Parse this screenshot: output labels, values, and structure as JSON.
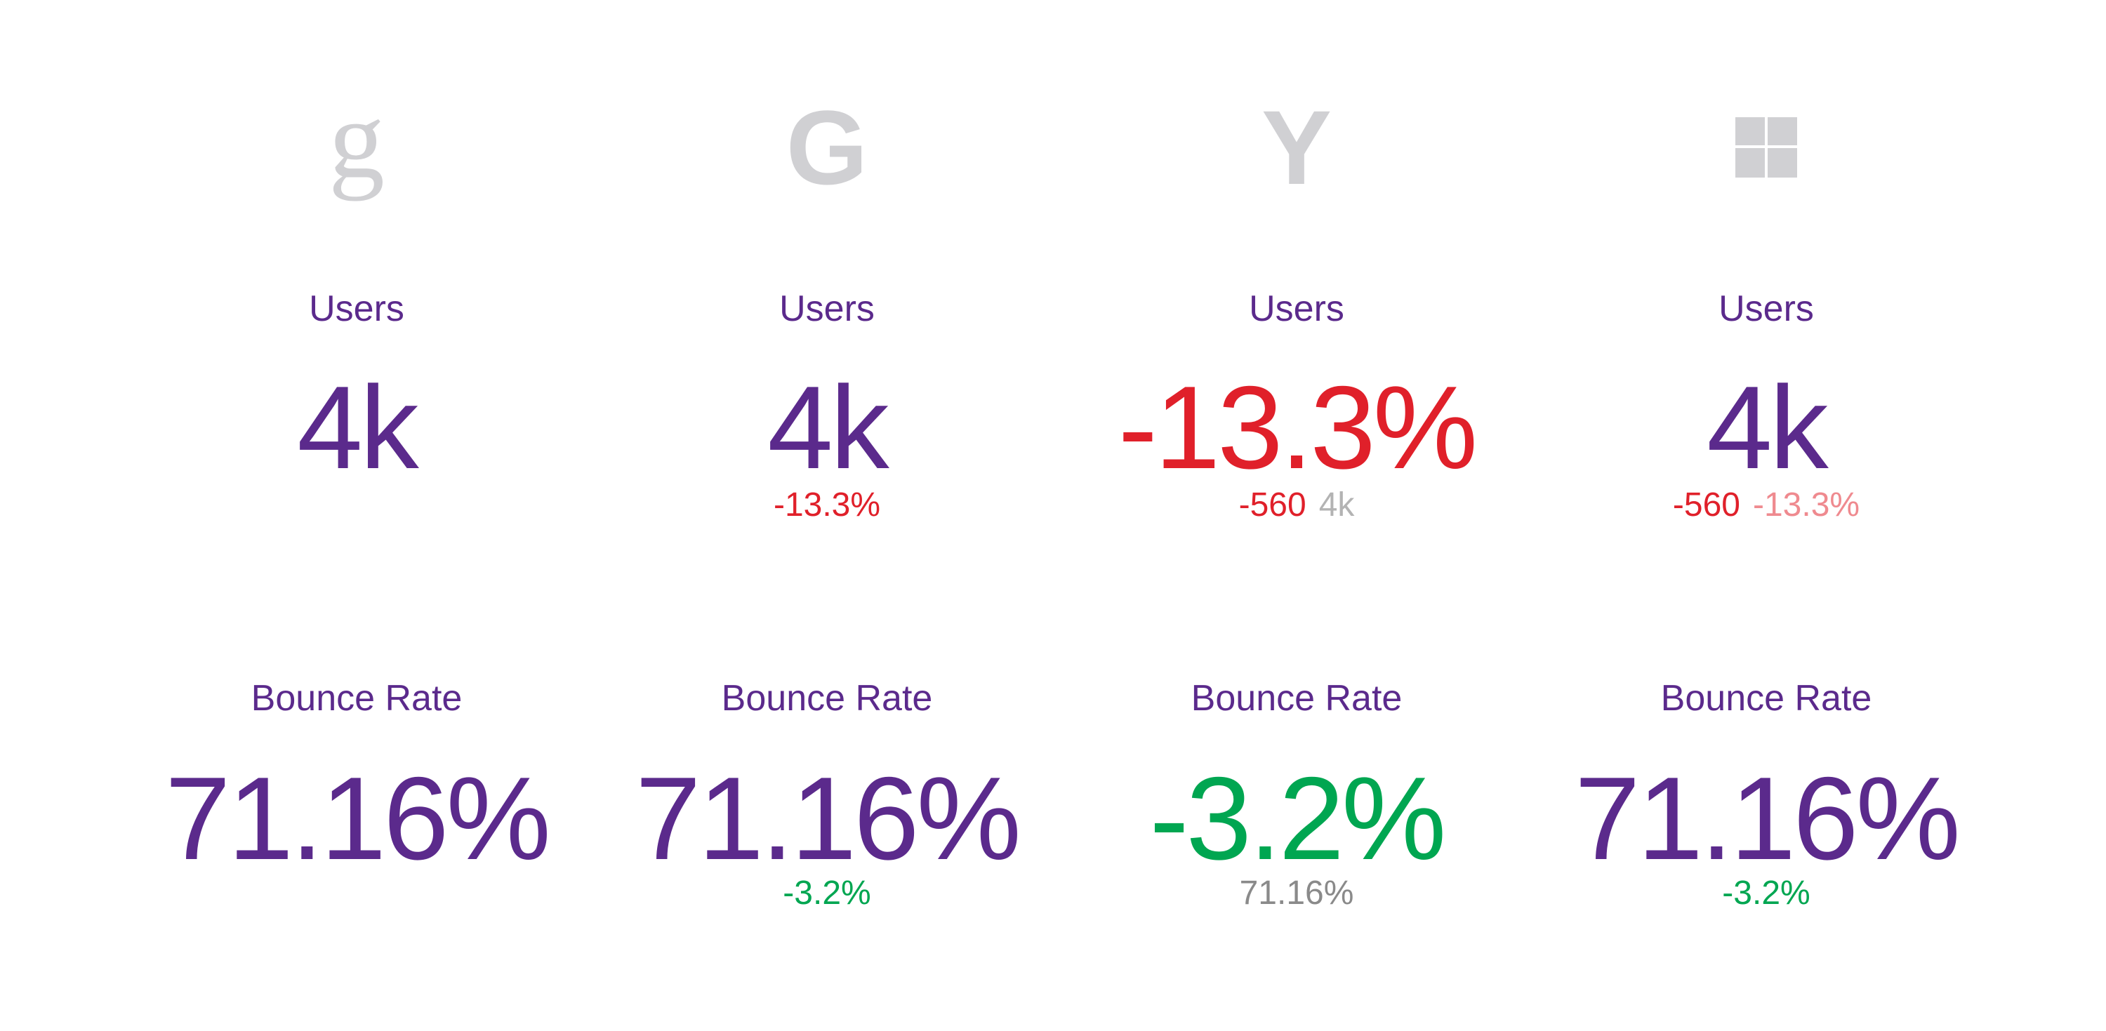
{
  "columns": [
    {
      "icon": "g",
      "metrics": [
        {
          "label": "Users",
          "value": "4k",
          "color": "#5b2a8c",
          "sub": []
        },
        {
          "label": "Bounce Rate",
          "value": "71.16%",
          "color": "#5b2a8c",
          "sub": []
        }
      ]
    },
    {
      "icon": "G",
      "metrics": [
        {
          "label": "Users",
          "value": "4k",
          "color": "#5b2a8c",
          "sub": [
            {
              "text": "-13.3%",
              "color": "#e0202a"
            }
          ]
        },
        {
          "label": "Bounce Rate",
          "value": "71.16%",
          "color": "#5b2a8c",
          "sub": [
            {
              "text": "-3.2%",
              "color": "#00a651"
            }
          ]
        }
      ]
    },
    {
      "icon": "Y",
      "metrics": [
        {
          "label": "Users",
          "value": "-13.3%",
          "color": "#e0202a",
          "sub": [
            {
              "text": "-560",
              "color": "#e0202a"
            },
            {
              "text": "4k",
              "color": "#b3b3b3"
            }
          ]
        },
        {
          "label": "Bounce Rate",
          "value": "-3.2%",
          "color": "#00a651",
          "sub": [
            {
              "text": "71.16%",
              "color": "#8a8a8a"
            }
          ]
        }
      ]
    },
    {
      "icon": null,
      "metrics": [
        {
          "label": "Users",
          "value": "4k",
          "color": "#5b2a8c",
          "sub": [
            {
              "text": "-560",
              "color": "#e0202a"
            },
            {
              "text": "-13.3%",
              "color": "#ef8a8f"
            }
          ]
        },
        {
          "label": "Bounce Rate",
          "value": "71.16%",
          "color": "#5b2a8c",
          "sub": [
            {
              "text": "-3.2%",
              "color": "#00a651"
            }
          ]
        }
      ]
    }
  ]
}
